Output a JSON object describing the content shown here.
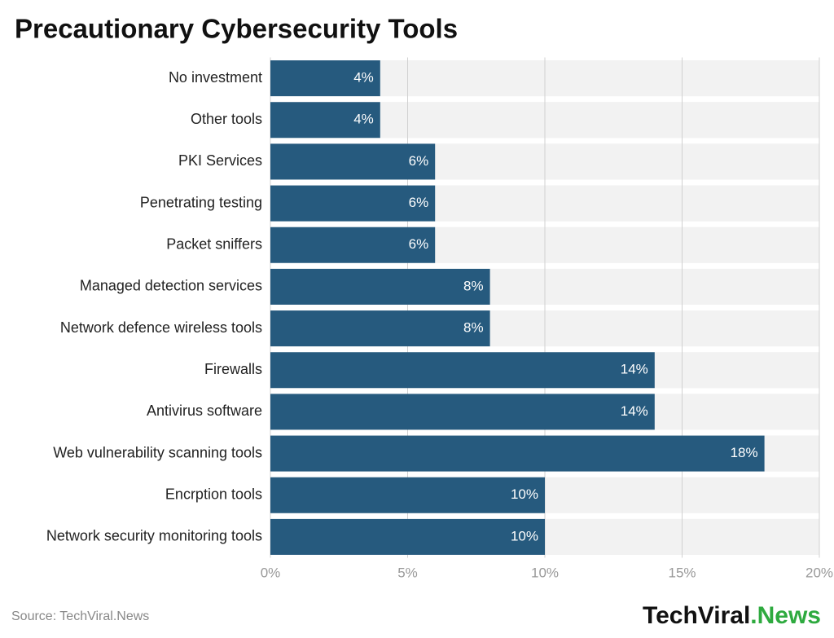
{
  "chart_data": {
    "type": "bar",
    "orientation": "horizontal",
    "title": "Precautionary Cybersecurity Tools",
    "categories": [
      "No investment",
      "Other tools",
      "PKI Services",
      "Penetrating testing",
      "Packet sniffers",
      "Managed detection services",
      "Network defence wireless tools",
      "Firewalls",
      "Antivirus software",
      "Web vulnerability scanning tools",
      "Encrption tools",
      "Network security monitoring tools"
    ],
    "values": [
      4,
      4,
      6,
      6,
      6,
      8,
      8,
      14,
      14,
      18,
      10,
      10
    ],
    "value_labels": [
      "4%",
      "4%",
      "6%",
      "6%",
      "6%",
      "8%",
      "8%",
      "14%",
      "14%",
      "18%",
      "10%",
      "10%"
    ],
    "color": "#265a7e",
    "xlim": [
      0,
      20
    ],
    "xticks": [
      {
        "value": 0,
        "label": "0%"
      },
      {
        "value": 5,
        "label": "5%"
      },
      {
        "value": 10,
        "label": "10%"
      },
      {
        "value": 15,
        "label": "15%"
      },
      {
        "value": 20,
        "label": "20%"
      }
    ],
    "grid": true
  },
  "footer": {
    "source": "Source: TechViral.News",
    "logo_main": "TechViral",
    "logo_accent": ".News"
  }
}
